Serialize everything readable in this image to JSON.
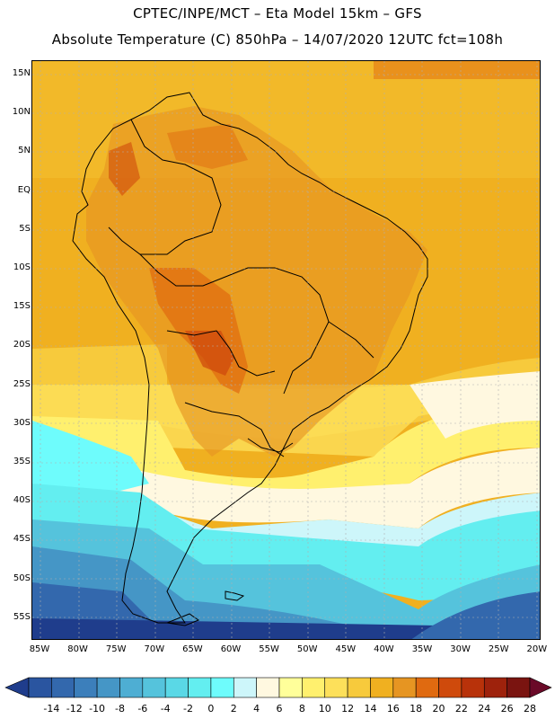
{
  "title_line1": "CPTEC/INPE/MCT –  Eta Model 15km – GFS",
  "title_line2": "Absolute Temperature (C) 850hPa – 14/07/2020 12UTC fct=108h",
  "lat_labels": [
    "15N",
    "10N",
    "5N",
    "EQ",
    "5S",
    "10S",
    "15S",
    "20S",
    "25S",
    "30S",
    "35S",
    "40S",
    "45S",
    "50S",
    "55S"
  ],
  "lon_labels": [
    "85W",
    "80W",
    "75W",
    "70W",
    "65W",
    "60W",
    "55W",
    "50W",
    "45W",
    "40W",
    "35W",
    "30W",
    "25W",
    "20W"
  ],
  "colorbar": {
    "levels": [
      "-14",
      "-12",
      "-10",
      "-8",
      "-6",
      "-4",
      "-2",
      "0",
      "2",
      "4",
      "6",
      "8",
      "10",
      "12",
      "14",
      "16",
      "18",
      "20",
      "22",
      "24",
      "26",
      "28"
    ],
    "colors": [
      "#1f3d8c",
      "#2a55a0",
      "#3368ad",
      "#3c7fbb",
      "#4596c6",
      "#4eaed3",
      "#55c3dc",
      "#5ad8e6",
      "#63eef0",
      "#6efcfc",
      "#cdf6fa",
      "#fff8e0",
      "#ffff9a",
      "#fff06e",
      "#fde05a",
      "#f7ca3c",
      "#f0b020",
      "#e69522",
      "#e06a10",
      "#cf4a0c",
      "#b8320a",
      "#9e220c",
      "#7a1410",
      "#6a0a28"
    ]
  },
  "map": {
    "extent": {
      "lon_min": -86,
      "lon_max": -19.5,
      "lat_min": -58.5,
      "lat_max": 17
    },
    "colors": {
      "warm_ocean": "#f0b020",
      "land_hot": "#e69522",
      "interior_hot": "#e06a10",
      "cold_dark": "#1f3d8c",
      "border": "#000000",
      "grid": "#b0b0b0"
    }
  }
}
